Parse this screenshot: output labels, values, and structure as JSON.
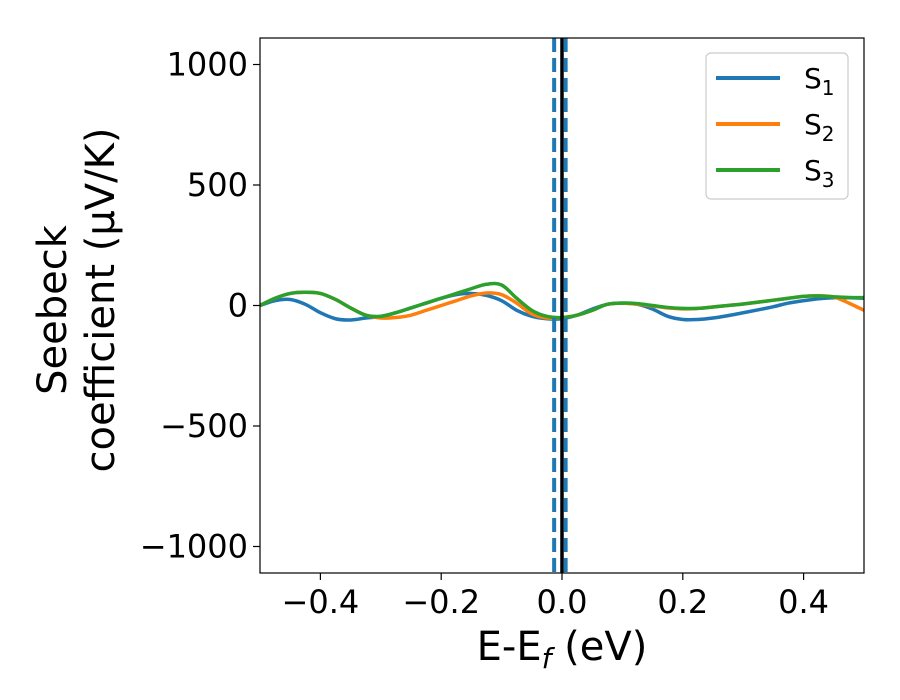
{
  "chart_data": {
    "type": "line",
    "xlabel": "E-E_f (eV)",
    "ylabel_line1": "Seebeck",
    "ylabel_line2": "coefficient  (μV/K)",
    "xlim": [
      -0.5,
      0.5
    ],
    "ylim": [
      -1110,
      1110
    ],
    "x_ticks": [
      -0.4,
      -0.2,
      0.0,
      0.2,
      0.4
    ],
    "x_tick_labels": [
      "−0.4",
      "−0.2",
      "0.0",
      "0.2",
      "0.4"
    ],
    "y_ticks": [
      -1000,
      -500,
      0,
      500,
      1000
    ],
    "y_tick_labels": [
      "−1000",
      "−500",
      "0",
      "500",
      "1000"
    ],
    "grid": false,
    "legend_position": "top-right",
    "vertical_lines": [
      {
        "x": -0.013,
        "style": "dashed",
        "color": "#1f77b4"
      },
      {
        "x": 0.0,
        "style": "solid",
        "color": "#000000"
      },
      {
        "x": 0.006,
        "style": "dashed",
        "color": "#1f77b4"
      }
    ],
    "x": [
      -0.5,
      -0.475,
      -0.45,
      -0.425,
      -0.4,
      -0.375,
      -0.35,
      -0.325,
      -0.3,
      -0.275,
      -0.25,
      -0.225,
      -0.2,
      -0.175,
      -0.15,
      -0.125,
      -0.1,
      -0.075,
      -0.05,
      -0.025,
      0.0,
      0.025,
      0.05,
      0.075,
      0.1,
      0.125,
      0.15,
      0.175,
      0.2,
      0.225,
      0.25,
      0.275,
      0.3,
      0.325,
      0.35,
      0.375,
      0.4,
      0.425,
      0.45,
      0.475,
      0.5
    ],
    "series": [
      {
        "name": "S",
        "subscript": "1",
        "color": "#1f77b4",
        "values": [
          0,
          20,
          25,
          5,
          -30,
          -55,
          -60,
          -52,
          -45,
          -30,
          -10,
          10,
          30,
          45,
          50,
          42,
          20,
          -20,
          -45,
          -55,
          -55,
          -40,
          -15,
          5,
          10,
          5,
          -15,
          -45,
          -58,
          -58,
          -52,
          -42,
          -30,
          -18,
          -5,
          10,
          20,
          28,
          32,
          32,
          30
        ]
      },
      {
        "name": "S",
        "subscript": "2",
        "color": "#ff7f0e",
        "values": [
          0,
          30,
          50,
          55,
          50,
          25,
          -10,
          -40,
          -52,
          -50,
          -40,
          -20,
          0,
          20,
          40,
          52,
          45,
          10,
          -35,
          -52,
          -50,
          -40,
          -20,
          5,
          10,
          5,
          -2,
          -10,
          -14,
          -12,
          -6,
          0,
          6,
          14,
          22,
          30,
          38,
          40,
          35,
          10,
          -20
        ]
      },
      {
        "name": "S",
        "subscript": "3",
        "color": "#2ca02c",
        "values": [
          0,
          30,
          50,
          55,
          50,
          25,
          -10,
          -40,
          -45,
          -30,
          -10,
          10,
          30,
          50,
          70,
          88,
          85,
          30,
          -20,
          -45,
          -50,
          -40,
          -20,
          5,
          10,
          8,
          0,
          -8,
          -12,
          -12,
          -6,
          0,
          6,
          14,
          22,
          30,
          38,
          40,
          36,
          33,
          33
        ]
      }
    ]
  }
}
